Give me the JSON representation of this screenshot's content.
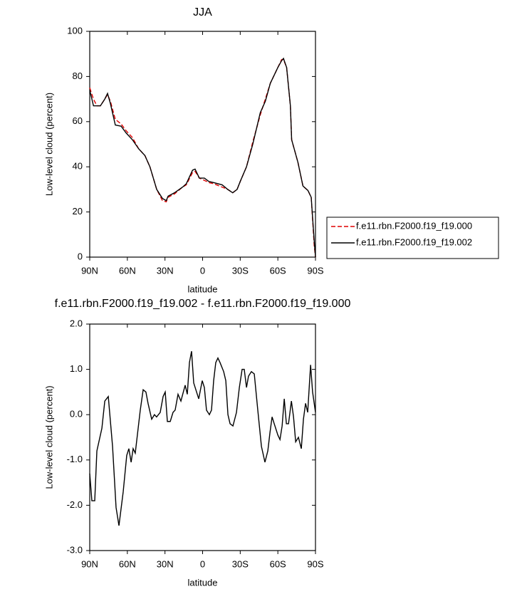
{
  "chart_data": [
    {
      "type": "line",
      "title": "JJA",
      "x_label": "latitude",
      "y_label": "Low-level cloud (percent)",
      "x": [
        90,
        87,
        84.3,
        81.5,
        78,
        75.8,
        73.5,
        69.6,
        65,
        61,
        56,
        51,
        46,
        42,
        36.6,
        32,
        29,
        27.5,
        22.4,
        16,
        13,
        8,
        6,
        2.6,
        -1.4,
        -5,
        -9,
        -15.6,
        -20,
        -24,
        -27.5,
        -30,
        -35,
        -40,
        -43,
        -46,
        -50,
        -54,
        -60,
        -63,
        -64.5,
        -67,
        -70,
        -71,
        -76,
        -80,
        -84,
        -86.6,
        -89,
        -90
      ],
      "xlim": [
        90,
        -90
      ],
      "xticks": [
        {
          "value": 90,
          "label": "90N"
        },
        {
          "value": 60,
          "label": "60N"
        },
        {
          "value": 30,
          "label": "30N"
        },
        0,
        {
          "value": -30,
          "label": "30S"
        },
        {
          "value": -60,
          "label": "60S"
        },
        {
          "value": -90,
          "label": "90S"
        }
      ],
      "ylim": [
        0,
        100
      ],
      "yticks": [
        0,
        20,
        40,
        60,
        80,
        100
      ],
      "legend": "right",
      "series": [
        {
          "name": "f.e11.rbn.F2000.f19_f19.000",
          "color": "#e00000",
          "line_style": "dashed",
          "values": [
            75,
            70,
            67,
            67,
            70,
            72,
            69,
            61,
            59,
            56,
            53,
            48,
            45,
            40,
            30,
            25,
            24.5,
            26.5,
            28,
            31,
            32,
            37.5,
            38,
            35,
            34,
            33,
            32.5,
            31,
            30,
            28.5,
            30,
            33.5,
            40,
            51,
            57,
            63,
            70,
            77,
            84,
            87.5,
            87.5,
            84,
            67,
            52,
            42,
            31.5,
            29.5,
            26.5,
            5,
            0
          ]
        },
        {
          "name": "f.e11.rbn.F2000.f19_f19.002",
          "color": "#000000",
          "line_style": "solid",
          "values": [
            74,
            67,
            67,
            67,
            70,
            72.5,
            68,
            58.5,
            58,
            55,
            52,
            48,
            45,
            40,
            30,
            26,
            25,
            27,
            28.5,
            31,
            32.5,
            38.5,
            39,
            35,
            35,
            33.5,
            33,
            32,
            30,
            28.5,
            30,
            33.5,
            40,
            50,
            57,
            64,
            69,
            77,
            84,
            87,
            88,
            84,
            67,
            52,
            42,
            31.5,
            29.5,
            26.5,
            7,
            0
          ]
        }
      ]
    },
    {
      "type": "line",
      "title": "f.e11.rbn.F2000.f19_f19.002 - f.e11.rbn.F2000.f19_f19.000",
      "x_label": "latitude",
      "y_label": "Low-level cloud (percent)",
      "x": [
        90,
        88.3,
        86,
        84.3,
        80.3,
        78,
        75.2,
        71.8,
        69,
        66.7,
        63.3,
        60.5,
        58.8,
        57,
        55.4,
        53.7,
        49.7,
        47.4,
        45.2,
        43.5,
        40.6,
        38.4,
        36.7,
        33.8,
        31.5,
        29.8,
        28.1,
        25.8,
        23.6,
        21.9,
        19.6,
        17.3,
        13.9,
        12.2,
        10.5,
        8.8,
        7.1,
        4.8,
        3.1,
        0.3,
        -1.4,
        -3.1,
        -5.4,
        -7.1,
        -8.8,
        -10.5,
        -12.2,
        -13.9,
        -16.8,
        -18.5,
        -20.2,
        -21.9,
        -24.2,
        -27,
        -29.3,
        -31.5,
        -33.2,
        -35,
        -36.6,
        -38.9,
        -41.2,
        -44,
        -46.9,
        -49.7,
        -52,
        -53.7,
        -55.4,
        -57.1,
        -60,
        -61.7,
        -63.4,
        -65.1,
        -66.8,
        -68.5,
        -70.8,
        -72.5,
        -74.2,
        -76.4,
        -78.7,
        -80.4,
        -82.1,
        -83.8,
        -86.1,
        -87.7,
        -90
      ],
      "xlim": [
        90,
        -90
      ],
      "xticks": [
        {
          "value": 90,
          "label": "90N"
        },
        {
          "value": 60,
          "label": "60N"
        },
        {
          "value": 30,
          "label": "30N"
        },
        0,
        {
          "value": -30,
          "label": "30S"
        },
        {
          "value": -60,
          "label": "60S"
        },
        {
          "value": -90,
          "label": "90S"
        }
      ],
      "ylim": [
        -3,
        2
      ],
      "yticks": [
        {
          "value": -3,
          "label": "-3.0"
        },
        {
          "value": -2,
          "label": "-2.0"
        },
        {
          "value": -1,
          "label": "-1.0"
        },
        {
          "value": 0,
          "label": "0.0"
        },
        {
          "value": 1,
          "label": "1.0"
        },
        {
          "value": 2,
          "label": "2.0"
        }
      ],
      "color": "#000000",
      "values": [
        -1.3,
        -1.9,
        -1.9,
        -0.8,
        -0.3,
        0.3,
        0.4,
        -0.7,
        -2.05,
        -2.45,
        -1.7,
        -0.9,
        -0.75,
        -1.05,
        -0.75,
        -0.85,
        0.1,
        0.55,
        0.5,
        0.25,
        -0.1,
        0.0,
        -0.05,
        0.05,
        0.4,
        0.5,
        -0.15,
        -0.15,
        0.05,
        0.1,
        0.45,
        0.3,
        0.65,
        0.45,
        1.15,
        1.4,
        0.7,
        0.5,
        0.35,
        0.75,
        0.6,
        0.1,
        0.0,
        0.1,
        0.75,
        1.15,
        1.25,
        1.15,
        0.95,
        0.75,
        0.0,
        -0.2,
        -0.25,
        0.05,
        0.6,
        1.0,
        1.0,
        0.6,
        0.85,
        0.95,
        0.9,
        0.1,
        -0.7,
        -1.05,
        -0.8,
        -0.4,
        -0.05,
        -0.2,
        -0.45,
        -0.55,
        -0.25,
        0.35,
        -0.2,
        -0.2,
        0.3,
        -0.05,
        -0.6,
        -0.5,
        -0.75,
        -0.1,
        0.25,
        0.05,
        1.1,
        0.5,
        0.05
      ]
    }
  ]
}
